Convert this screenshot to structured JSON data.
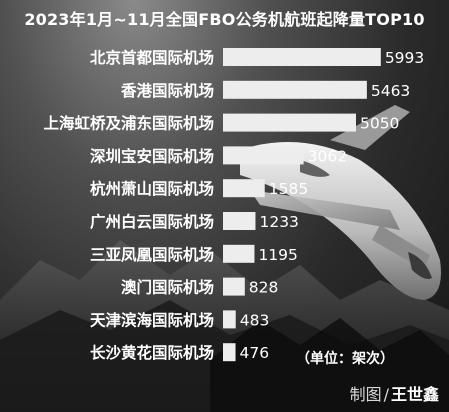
{
  "title": "2023年1月~11月全国FBO公务机航班起降量TOP10",
  "unit_note": "（单位：架次）",
  "credit": {
    "label": "制图",
    "separator": "/",
    "name": "王世鑫"
  },
  "colors": {
    "bar": "#ededed",
    "text": "#ffffff"
  },
  "chart_data": {
    "type": "bar",
    "orientation": "horizontal",
    "title": "2023年1月~11月全国FBO公务机航班起降量TOP10",
    "categories": [
      "北京首都国际机场",
      "香港国际机场",
      "上海虹桥及浦东国际机场",
      "深圳宝安国际机场",
      "杭州萧山国际机场",
      "广州白云国际机场",
      "三亚凤凰国际机场",
      "澳门国际机场",
      "天津滨海国际机场",
      "长沙黄花国际机场"
    ],
    "values": [
      5993,
      5463,
      5050,
      3062,
      1585,
      1233,
      1195,
      828,
      483,
      476
    ],
    "data_labels": [
      "5993",
      "5463",
      "5050",
      "3062",
      "1585",
      "1233",
      "1195",
      "828",
      "483",
      "476"
    ],
    "xlim": [
      0,
      6000
    ],
    "grid": false,
    "legend": "none"
  }
}
